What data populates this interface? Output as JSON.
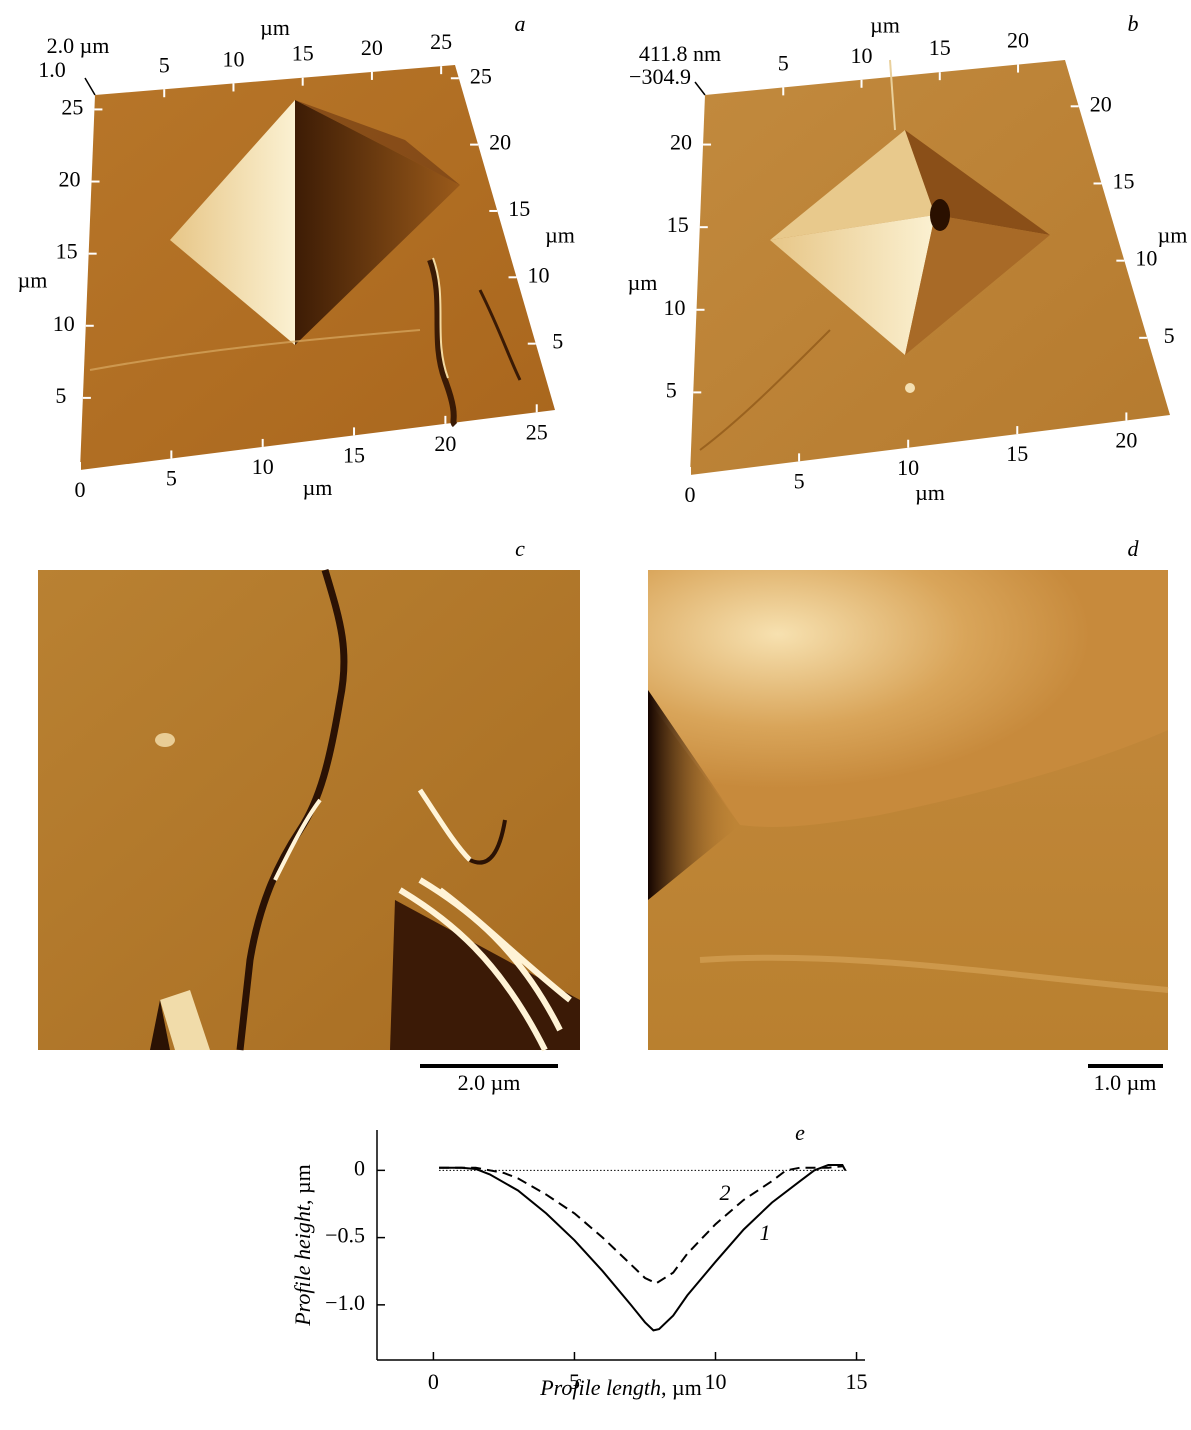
{
  "panels": [
    {
      "label": "a",
      "z_max": "2.0 µm",
      "z_min": "1.0",
      "axes": [
        {
          "edge": "bottom",
          "lim": [
            0,
            26
          ],
          "ticks": [
            0,
            5,
            10,
            15,
            20,
            25
          ],
          "unit": "µm"
        },
        {
          "edge": "left",
          "lim": [
            0,
            26
          ],
          "ticks": [
            5,
            10,
            15,
            20,
            25
          ],
          "unit": "µm"
        },
        {
          "edge": "top",
          "lim": [
            0,
            26
          ],
          "ticks": [
            5,
            10,
            15,
            20,
            25
          ],
          "unit": "µm"
        },
        {
          "edge": "right",
          "lim": [
            0,
            26
          ],
          "ticks": [
            5,
            10,
            15,
            20,
            25
          ],
          "unit": "µm"
        }
      ]
    },
    {
      "label": "b",
      "z_max": "411.8 nm",
      "z_min": "−304.9",
      "axes": [
        {
          "edge": "bottom",
          "lim": [
            0,
            22
          ],
          "ticks": [
            0,
            5,
            10,
            15,
            20
          ],
          "unit": "µm"
        },
        {
          "edge": "left",
          "lim": [
            0,
            23
          ],
          "ticks": [
            5,
            10,
            15,
            20
          ],
          "unit": "µm"
        },
        {
          "edge": "top",
          "lim": [
            0,
            23
          ],
          "ticks": [
            5,
            10,
            15,
            20
          ],
          "unit": "µm"
        },
        {
          "edge": "right",
          "lim": [
            0,
            23
          ],
          "ticks": [
            5,
            10,
            15,
            20
          ],
          "unit": "µm"
        }
      ]
    },
    {
      "label": "c",
      "scale_bar": "2.0 µm"
    },
    {
      "label": "d",
      "scale_bar": "1.0 µm"
    }
  ],
  "chart_data": {
    "type": "line",
    "label": "e",
    "x_label": "Profile length",
    "x_unit": "µm",
    "y_label": "Profile height",
    "y_unit": "µm",
    "xlim": [
      -2,
      15.3
    ],
    "ylim": [
      -1.41,
      0.3
    ],
    "xticks": [
      0,
      5,
      10,
      15
    ],
    "yticks": [
      0,
      {
        "value": -0.5,
        "label": "−0.5"
      },
      {
        "value": -1,
        "label": "−1.0"
      }
    ],
    "series": [
      {
        "name": "1",
        "style": "solid",
        "color": "#000000",
        "x": [
          0.2,
          1,
          1.5,
          2,
          3,
          4,
          5,
          6,
          7,
          7.5,
          7.8,
          8,
          8.5,
          9,
          10,
          11,
          12,
          13,
          13.5,
          14,
          14.5,
          14.6
        ],
        "values": [
          0.02,
          0.02,
          0.01,
          -0.03,
          -0.15,
          -0.32,
          -0.52,
          -0.75,
          -1.0,
          -1.13,
          -1.19,
          -1.18,
          -1.08,
          -0.93,
          -0.68,
          -0.44,
          -0.24,
          -0.08,
          0.0,
          0.04,
          0.04,
          0.0
        ]
      },
      {
        "name": "2",
        "style": "dashed",
        "color": "#000000",
        "x": [
          0.2,
          1.5,
          2.5,
          3,
          4,
          5,
          6,
          7,
          7.5,
          7.9,
          8.5,
          9,
          10,
          11,
          12,
          12.5,
          13,
          14,
          14.5
        ],
        "values": [
          0.02,
          0.02,
          -0.02,
          -0.06,
          -0.18,
          -0.32,
          -0.5,
          -0.7,
          -0.8,
          -0.84,
          -0.76,
          -0.62,
          -0.4,
          -0.22,
          -0.08,
          0.0,
          0.02,
          0.02,
          0.03
        ]
      }
    ]
  }
}
